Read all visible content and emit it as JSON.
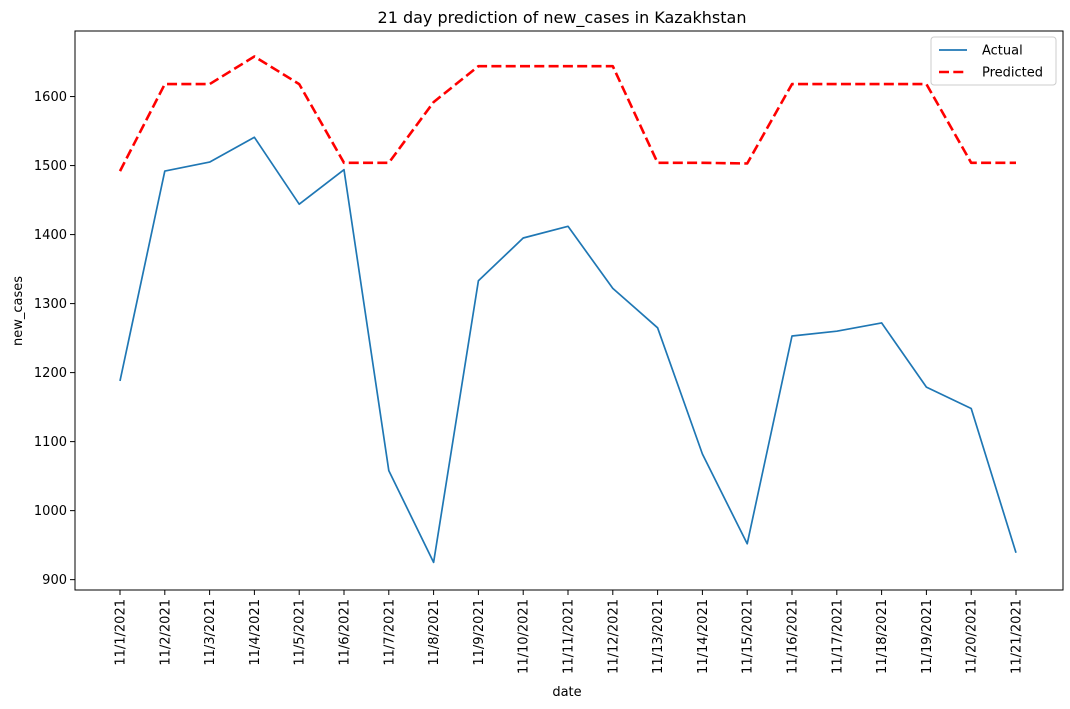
{
  "chart_data": {
    "type": "line",
    "title": "21 day prediction of new_cases in Kazakhstan",
    "xlabel": "date",
    "ylabel": "new_cases",
    "ylim": [
      885,
      1695
    ],
    "yticks": [
      900,
      1000,
      1100,
      1200,
      1300,
      1400,
      1500,
      1600
    ],
    "grid": false,
    "legend_position": "top-right",
    "categories": [
      "11/1/2021",
      "11/2/2021",
      "11/3/2021",
      "11/4/2021",
      "11/5/2021",
      "11/6/2021",
      "11/7/2021",
      "11/8/2021",
      "11/9/2021",
      "11/10/2021",
      "11/11/2021",
      "11/12/2021",
      "11/13/2021",
      "11/14/2021",
      "11/15/2021",
      "11/16/2021",
      "11/17/2021",
      "11/18/2021",
      "11/19/2021",
      "11/20/2021",
      "11/21/2021"
    ],
    "series": [
      {
        "name": "Actual",
        "color": "#1f77b4",
        "style": "solid",
        "values": [
          1188,
          1492,
          1505,
          1541,
          1444,
          1494,
          1058,
          925,
          1333,
          1395,
          1412,
          1322,
          1265,
          1082,
          952,
          1253,
          1260,
          1272,
          1179,
          1148,
          939
        ]
      },
      {
        "name": "Predicted",
        "color": "#ff0000",
        "style": "dashed",
        "values": [
          1492,
          1618,
          1618,
          1658,
          1618,
          1504,
          1504,
          1592,
          1644,
          1644,
          1644,
          1644,
          1504,
          1504,
          1503,
          1618,
          1618,
          1618,
          1618,
          1504,
          1504
        ]
      }
    ]
  }
}
